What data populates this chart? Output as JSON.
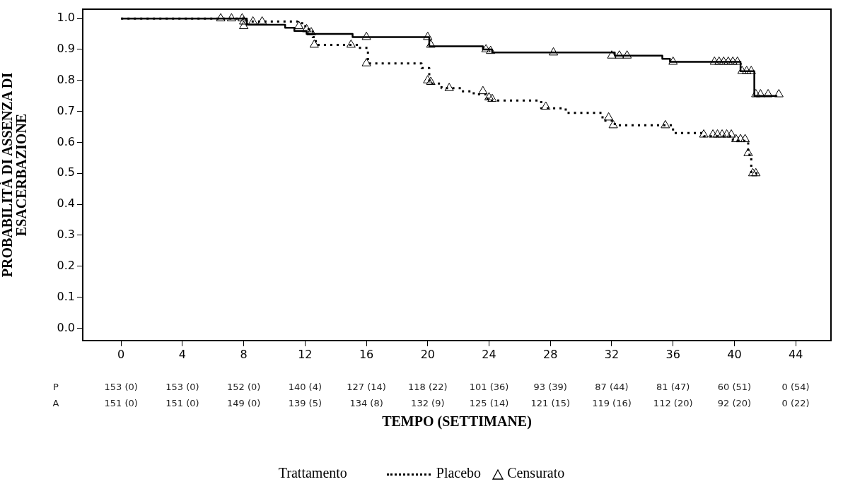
{
  "chart_data": {
    "type": "step",
    "xlabel": "TEMPO (SETTIMANE)",
    "ylabel": "PROBABILITÀ DI ASSENZA DI ESACERBAZIONE",
    "legend_title": "Trattamento",
    "legend": "bottom",
    "grid": false,
    "xlim": [
      -2.5,
      46.3
    ],
    "xticks": [
      0,
      4,
      8,
      12,
      16,
      20,
      24,
      28,
      32,
      36,
      40,
      44
    ],
    "ylim": [
      -0.04,
      1.03
    ],
    "yticks": [
      {
        "value": 0,
        "label": "0.0"
      },
      {
        "value": 0.1,
        "label": "0.1"
      },
      {
        "value": 0.2,
        "label": "0.2"
      },
      {
        "value": 0.3,
        "label": "0.3"
      },
      {
        "value": 0.4,
        "label": "0.4"
      },
      {
        "value": 0.5,
        "label": "0.5"
      },
      {
        "value": 0.6,
        "label": "0.6"
      },
      {
        "value": 0.7,
        "label": "0.7"
      },
      {
        "value": 0.8,
        "label": "0.8"
      },
      {
        "value": 0.9,
        "label": "0.9"
      },
      {
        "value": 1,
        "label": "1.0"
      }
    ],
    "series": [
      {
        "name": "Placebo",
        "color": "#000000",
        "line_style": "dotted",
        "marker": "none",
        "x": [
          0,
          8.2,
          11.5,
          11.9,
          12.1,
          12.5,
          12.7,
          15.5,
          16.1,
          19.6,
          20.1,
          20.9,
          22.2,
          23,
          23.9,
          27.4,
          29,
          31.4,
          32.2,
          36,
          38,
          39.9,
          40.9,
          41.1,
          41.6
        ],
        "values": [
          1,
          0.99,
          0.985,
          0.975,
          0.965,
          0.94,
          0.915,
          0.905,
          0.855,
          0.84,
          0.79,
          0.775,
          0.765,
          0.755,
          0.735,
          0.71,
          0.695,
          0.67,
          0.655,
          0.63,
          0.62,
          0.605,
          0.56,
          0.5,
          0.5
        ]
      },
      {
        "color": "#000000",
        "line_style": "solid",
        "marker": "none",
        "x": [
          0,
          8.2,
          10.7,
          11.3,
          12.1,
          15.1,
          20.1,
          23.6,
          24.2,
          32.2,
          35.3,
          35.8,
          40.4,
          41.3,
          42.8
        ],
        "values": [
          1,
          0.98,
          0.97,
          0.96,
          0.95,
          0.94,
          0.91,
          0.9,
          0.89,
          0.88,
          0.87,
          0.86,
          0.83,
          0.75,
          0.75
        ]
      },
      {
        "name": "Censurato",
        "type": "scatter",
        "color": "#000000",
        "marker": "triangle",
        "x": [
          6.5,
          7.2,
          7.9,
          8.0,
          8.6,
          9.2,
          12.6,
          15.0,
          16.0,
          20.0,
          20.2,
          21.4,
          23.6,
          24.0,
          24.2,
          27.7,
          31.8,
          32.1,
          35.5,
          38.0,
          38.6,
          38.9,
          39.2,
          39.5,
          39.8,
          40.1,
          40.4,
          40.7,
          40.9,
          41.2,
          41.4,
          8.0,
          11.6,
          12.1,
          12.4,
          16.0,
          20.0,
          20.2,
          23.8,
          24.1,
          28.2,
          32.0,
          32.5,
          33.0,
          36.0,
          38.7,
          39.0,
          39.3,
          39.6,
          39.9,
          40.2,
          40.5,
          40.8,
          41.1,
          41.4,
          41.7,
          42.2,
          42.9
        ],
        "values": [
          1,
          1,
          1,
          0.99,
          0.99,
          0.99,
          0.915,
          0.915,
          0.855,
          0.8,
          0.795,
          0.775,
          0.765,
          0.745,
          0.74,
          0.715,
          0.68,
          0.655,
          0.655,
          0.625,
          0.625,
          0.625,
          0.625,
          0.625,
          0.625,
          0.61,
          0.61,
          0.61,
          0.565,
          0.5,
          0.5,
          0.975,
          0.975,
          0.965,
          0.955,
          0.94,
          0.94,
          0.915,
          0.9,
          0.895,
          0.89,
          0.88,
          0.88,
          0.88,
          0.86,
          0.86,
          0.86,
          0.86,
          0.86,
          0.86,
          0.86,
          0.83,
          0.83,
          0.83,
          0.755,
          0.755,
          0.755,
          0.755
        ]
      }
    ],
    "annotations": [
      "P",
      "153 (0)",
      "153 (0)",
      "152 (0)",
      "140 (4)",
      "127 (14)",
      "118 (22)",
      "101 (36)",
      "93 (39)",
      "87 (44)",
      "81 (47)",
      "60 (51)",
      "0 (54)",
      "A",
      "151 (0)",
      "151 (0)",
      "149 (0)",
      "139 (5)",
      "134 (8)",
      "132 (9)",
      "125 (14)",
      "121 (15)",
      "119 (16)",
      "112 (20)",
      "92 (20)",
      "0 (22)"
    ]
  }
}
